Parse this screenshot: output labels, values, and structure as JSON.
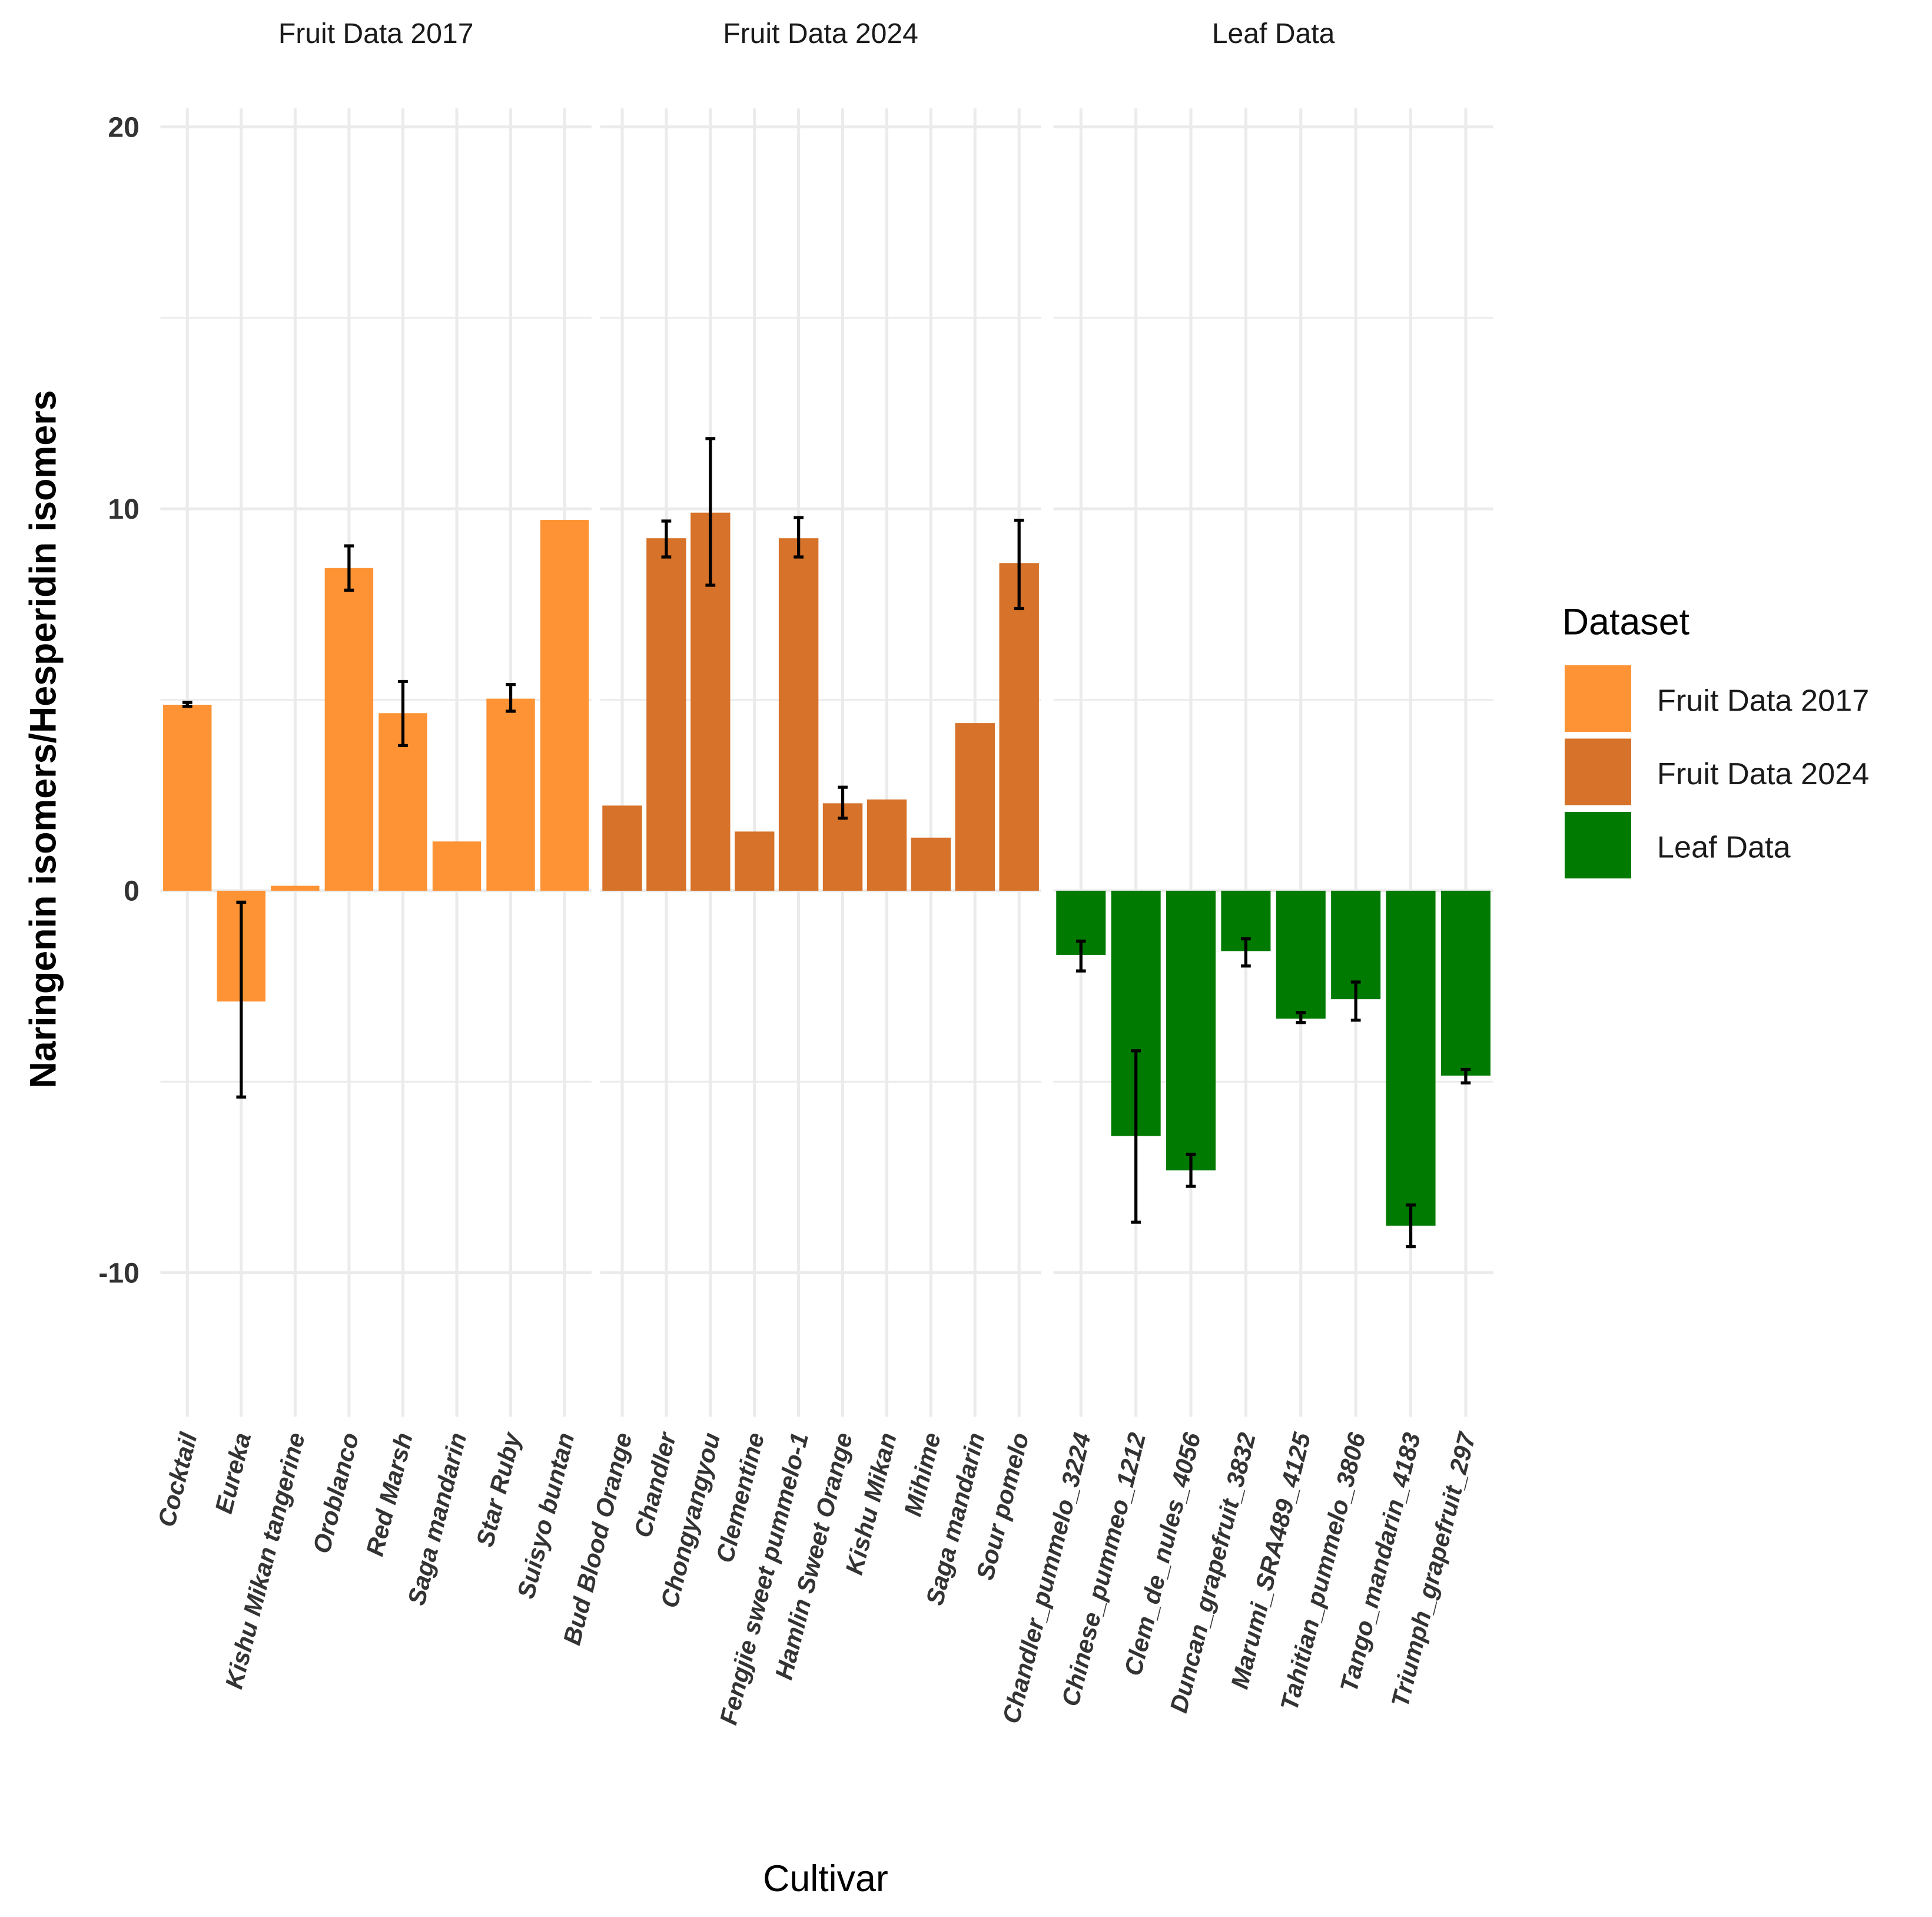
{
  "chart_data": {
    "type": "bar",
    "ylabel": "Naringenin isomers/Hesperidin isomers",
    "xlabel": "Cultivar",
    "ylim": [
      -13.8,
      20.5
    ],
    "yticks": [
      -10,
      0,
      10,
      20
    ],
    "grid": true,
    "legend": {
      "title": "Dataset",
      "placement": "right",
      "entries": [
        {
          "label": "Fruit Data 2017",
          "color": "#FD9335"
        },
        {
          "label": "Fruit Data 2024",
          "color": "#D67229"
        },
        {
          "label": "Leaf Data",
          "color": "#007A00"
        }
      ]
    },
    "panels": [
      {
        "title": "Fruit Data 2017",
        "color": "#FD9335",
        "categories": [
          "Cocktail",
          "Eureka",
          "Kishu Mikan tangerine",
          "Oroblanco",
          "Red Marsh",
          "Saga mandarin",
          "Star Ruby",
          "Suisyo buntan"
        ],
        "values": [
          4.87,
          -2.9,
          0.13,
          8.45,
          4.65,
          1.29,
          5.03,
          9.71
        ],
        "err_low": [
          4.83,
          -5.4,
          null,
          7.87,
          3.8,
          null,
          4.7,
          null
        ],
        "err_high": [
          4.93,
          -0.3,
          null,
          9.03,
          5.48,
          null,
          5.4,
          null
        ]
      },
      {
        "title": "Fruit Data 2024",
        "color": "#D67229",
        "categories": [
          "Bud Blood Orange",
          "Chandler",
          "Chongyangyou",
          "Clementine",
          "Fengjie sweet pummelo-1",
          "Hamlin Sweet Orange",
          "Kishu Mikan",
          "Mihime",
          "Saga mandarin",
          "Sour pomelo"
        ],
        "values": [
          2.23,
          9.23,
          9.9,
          1.55,
          9.23,
          2.29,
          2.39,
          1.39,
          4.39,
          8.58
        ],
        "err_low": [
          null,
          8.74,
          8.0,
          null,
          8.74,
          1.9,
          null,
          null,
          null,
          7.39
        ],
        "err_high": [
          null,
          9.68,
          11.84,
          null,
          9.77,
          2.71,
          null,
          null,
          null,
          9.7
        ]
      },
      {
        "title": "Leaf Data",
        "color": "#007A00",
        "categories": [
          "Chandler_pummelo_3224",
          "Chinese_pummeo_1212",
          "Clem_de_nules_4056",
          "Duncan_grapefruit_3832",
          "Marumi_SRA489_4125",
          "Tahitian_pummelo_3806",
          "Tango_mandarin_4183",
          "Triumph_grapefruit_297"
        ],
        "values": [
          -1.68,
          -6.42,
          -7.32,
          -1.58,
          -3.35,
          -2.84,
          -8.77,
          -4.84
        ],
        "err_low": [
          -2.1,
          -8.68,
          -7.74,
          -1.97,
          -3.45,
          -3.39,
          -9.32,
          -5.03
        ],
        "err_high": [
          -1.32,
          -4.19,
          -6.9,
          -1.26,
          -3.19,
          -2.39,
          -8.23,
          -4.68
        ]
      }
    ]
  }
}
